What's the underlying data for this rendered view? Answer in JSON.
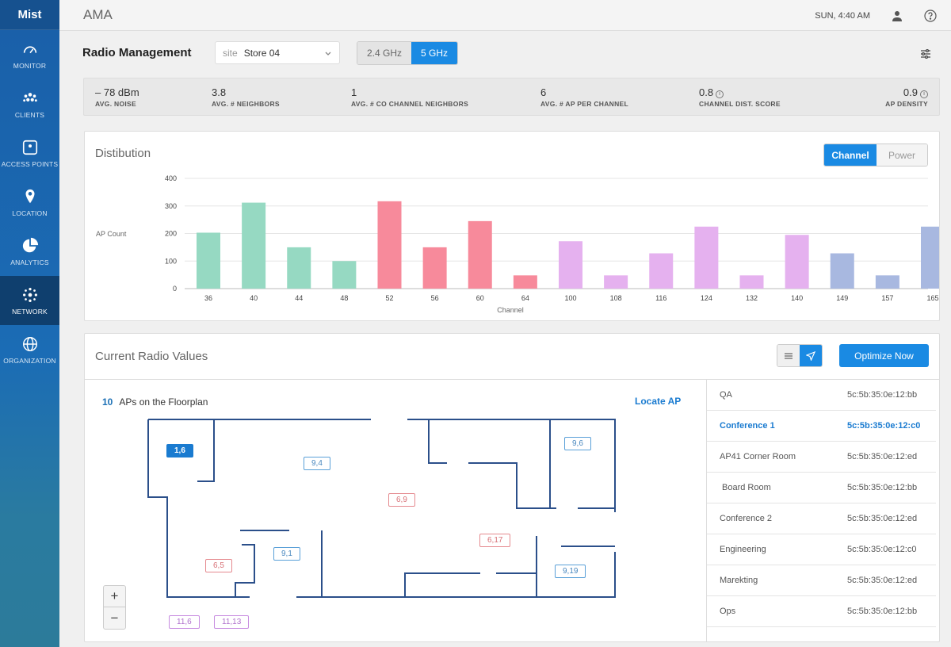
{
  "brand": {
    "logo": "Mist",
    "accent": "#1a8ae3"
  },
  "sidebar": {
    "items": [
      {
        "label": "MONITOR",
        "icon": "gauge-icon"
      },
      {
        "label": "CLIENTS",
        "icon": "clients-icon"
      },
      {
        "label": "ACCESS POINTS",
        "icon": "access-point-icon"
      },
      {
        "label": "LOCATION",
        "icon": "location-pin-icon"
      },
      {
        "label": "ANALYTICS",
        "icon": "pie-chart-icon"
      },
      {
        "label": "NETWORK",
        "icon": "network-icon",
        "active": true
      },
      {
        "label": "ORGANIZATION",
        "icon": "globe-icon"
      }
    ]
  },
  "topbar": {
    "org": "AMA",
    "datetime": "SUN, 4:40 AM"
  },
  "header": {
    "title": "Radio Management",
    "site_label": "site",
    "site_value": "Store 04",
    "bands": [
      "2.4 GHz",
      "5 GHz"
    ],
    "active_band": "5 GHz"
  },
  "stats": [
    {
      "value": "– 78 dBm",
      "label": "AVG. NOISE"
    },
    {
      "value": "3.8",
      "label": "AVG. # NEIGHBORS"
    },
    {
      "value": "1",
      "label": "AVG. # CO CHANNEL NEIGHBORS"
    },
    {
      "value": "6",
      "label": "AVG. # AP PER CHANNEL"
    },
    {
      "value": "0.8",
      "label": "CHANNEL DIST. SCORE"
    },
    {
      "value": "0.9",
      "label": "AP DENSITY"
    }
  ],
  "distribution": {
    "title": "Distibution",
    "toggle": [
      "Channel",
      "Power"
    ],
    "active_toggle": "Channel"
  },
  "chart_data": {
    "type": "bar",
    "xlabel": "Channel",
    "ylabel": "AP Count",
    "ylim": [
      0,
      400
    ],
    "yticks": [
      0,
      100,
      200,
      300,
      400
    ],
    "grid": true,
    "categories": [
      "36",
      "40",
      "44",
      "48",
      "52",
      "56",
      "60",
      "64",
      "100",
      "108",
      "116",
      "124",
      "132",
      "140",
      "149",
      "157",
      "165"
    ],
    "values": [
      203,
      312,
      150,
      100,
      317,
      150,
      245,
      48,
      172,
      48,
      128,
      225,
      48,
      195,
      128,
      48,
      225
    ],
    "colors": [
      "#96d9c2",
      "#96d9c2",
      "#96d9c2",
      "#96d9c2",
      "#f78a9b",
      "#f78a9b",
      "#f78a9b",
      "#f78a9b",
      "#e5b1ef",
      "#e5b1ef",
      "#e5b1ef",
      "#e5b1ef",
      "#e5b1ef",
      "#e5b1ef",
      "#a8b8e0",
      "#a8b8e0",
      "#a8b8e0"
    ]
  },
  "radio": {
    "title": "Current Radio Values",
    "optimize_label": "Optimize Now",
    "ap_count": "10",
    "ap_count_label": "APs on the Floorplan",
    "locate_label": "Locate AP",
    "zoom_in": "+",
    "zoom_out": "−",
    "floor_aps": [
      "1,6",
      "9,4",
      "9,6",
      "6,9",
      "6,17",
      "9,1",
      "6,5",
      "9,19",
      "11,6",
      "11,13"
    ],
    "ap_list": [
      {
        "name": "QA",
        "mac": "5c:5b:35:0e:12:bb"
      },
      {
        "name": "Conference 1",
        "mac": "5c:5b:35:0e:12:c0",
        "selected": true
      },
      {
        "name": "AP41 Corner Room",
        "mac": "5c:5b:35:0e:12:ed"
      },
      {
        "name": "Board Room",
        "mac": "5c:5b:35:0e:12:bb"
      },
      {
        "name": "Conference 2",
        "mac": "5c:5b:35:0e:12:ed"
      },
      {
        "name": "Engineering",
        "mac": "5c:5b:35:0e:12:c0"
      },
      {
        "name": "Marekting",
        "mac": "5c:5b:35:0e:12:ed"
      },
      {
        "name": "Ops",
        "mac": "5c:5b:35:0e:12:bb"
      }
    ]
  }
}
